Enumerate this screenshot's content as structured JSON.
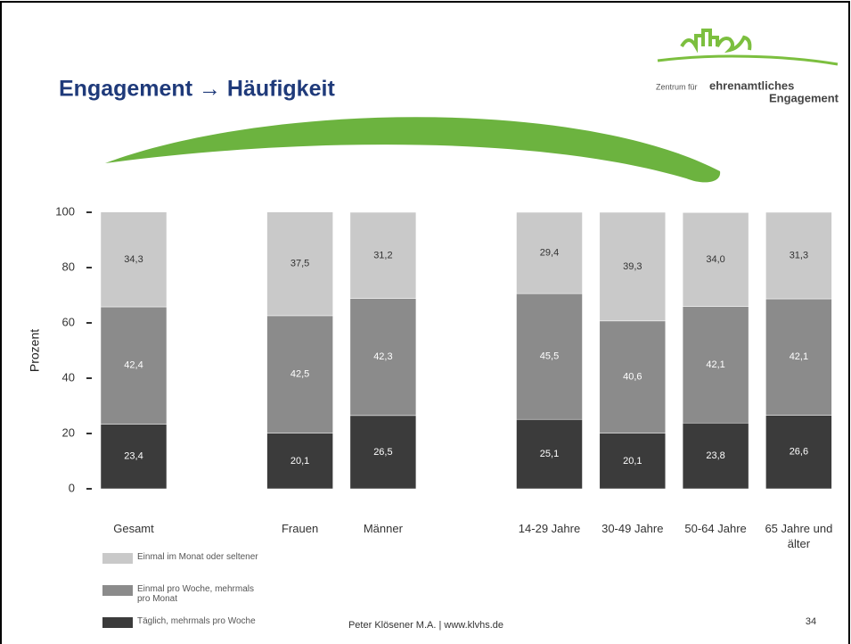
{
  "chart_data": {
    "type": "stacked_bar",
    "title": "Engagement → Häufigkeit",
    "ylabel": "Prozent",
    "categories": [
      "Gesamt",
      "Frauen",
      "Männer",
      "14-29 Jahre",
      "30-49 Jahre",
      "50-64 Jahre",
      "65 Jahre und älter"
    ],
    "series": [
      {
        "name": "Einmal im Monat oder seltener",
        "color": "#c9c9c9",
        "values": [
          34.3,
          37.5,
          31.2,
          29.4,
          39.3,
          34.0,
          31.3
        ],
        "value_labels": [
          "34,3",
          "37,5",
          "31,2",
          "29,4",
          "39,3",
          "34,0",
          "31,3"
        ]
      },
      {
        "name": "Einmal pro Woche, mehrmals pro Monat",
        "color": "#8b8b8b",
        "values": [
          42.4,
          42.5,
          42.3,
          45.5,
          40.6,
          42.1,
          42.1
        ],
        "value_labels": [
          "42,4",
          "42,5",
          "42,3",
          "45,5",
          "40,6",
          "42,1",
          "42,1"
        ]
      },
      {
        "name": "Täglich, mehrmals pro Woche",
        "color": "#3b3b3b",
        "values": [
          23.4,
          20.1,
          26.5,
          25.1,
          20.1,
          23.8,
          26.6
        ],
        "value_labels": [
          "23,4",
          "20,1",
          "26,5",
          "25,1",
          "20,1",
          "23,8",
          "26,6"
        ]
      }
    ],
    "ylim": [
      0,
      100
    ],
    "yticks": [
      0,
      20,
      40,
      60,
      80,
      100
    ]
  },
  "logo": {
    "line1": "Zentrum für",
    "line2": "ehrenamtliches",
    "line3": "Engagement"
  },
  "footer": "Peter Klösener M.A. | www.klvhs.de",
  "page_number": "34"
}
